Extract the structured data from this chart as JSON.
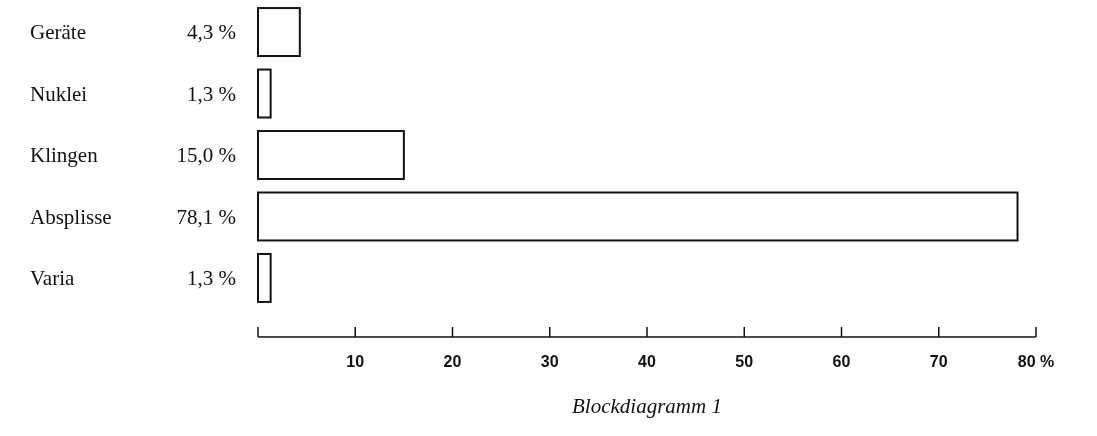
{
  "chart_data": {
    "type": "bar",
    "orientation": "horizontal",
    "title": "Blockdiagramm 1",
    "categories": [
      "Geräte",
      "Nuklei",
      "Klingen",
      "Absplisse",
      "Varia"
    ],
    "values": [
      4.3,
      1.3,
      15.0,
      78.1,
      1.3
    ],
    "value_labels": [
      "4,3 %",
      "1,3 %",
      "15,0 %",
      "78,1 %",
      "1,3 %"
    ],
    "color": "#ffffff",
    "xlim": [
      0,
      80
    ],
    "xticks": [
      {
        "value": 0,
        "label": null
      },
      10,
      20,
      30,
      40,
      50,
      60,
      70,
      {
        "value": 80,
        "label": "80 %"
      }
    ],
    "grid": false
  }
}
